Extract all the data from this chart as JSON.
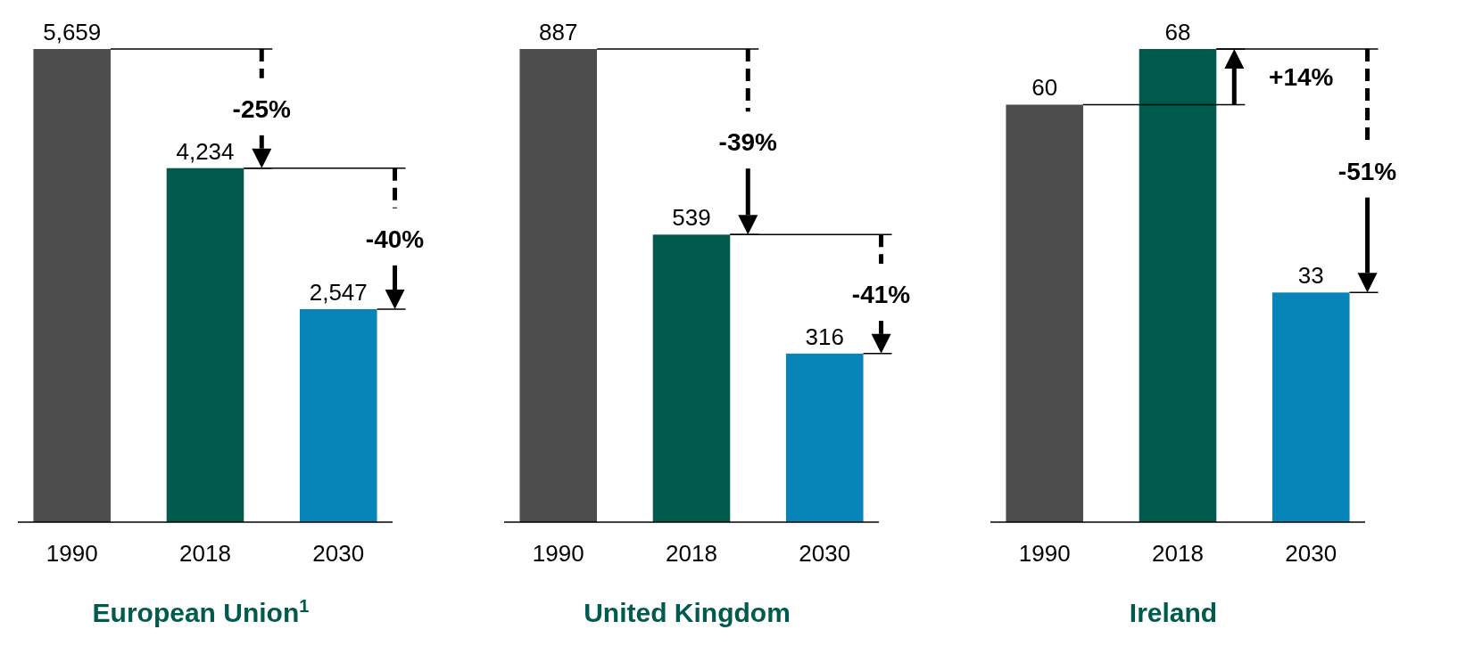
{
  "chart_data": [
    {
      "type": "bar",
      "title": "European Union$^{1}$",
      "categories": [
        "1990",
        "2018",
        "2030"
      ],
      "values": [
        5659,
        4234,
        2547
      ],
      "colors": [
        "#4d4d4d",
        "#005a4e",
        "#0784b8"
      ],
      "value_labels": [
        "5,659",
        "4,234",
        "2,547"
      ],
      "annotations": [
        "-25%",
        "-40%"
      ]
    },
    {
      "type": "bar",
      "title": "United Kingdom",
      "categories": [
        "1990",
        "2018",
        "2030"
      ],
      "values": [
        887,
        539,
        316
      ],
      "colors": [
        "#4d4d4d",
        "#005a4e",
        "#0784b8"
      ],
      "data_labels": true,
      "annotations": [
        "-39%",
        "-41%"
      ]
    },
    {
      "type": "bar",
      "title": "Ireland",
      "categories": [
        "1990",
        "2018",
        "2030"
      ],
      "values": [
        60,
        68,
        33
      ],
      "colors": [
        "#4d4d4d",
        "#005a4e",
        "#0784b8"
      ],
      "data_labels": true,
      "annotations": [
        "+14%",
        "-51%"
      ]
    }
  ]
}
